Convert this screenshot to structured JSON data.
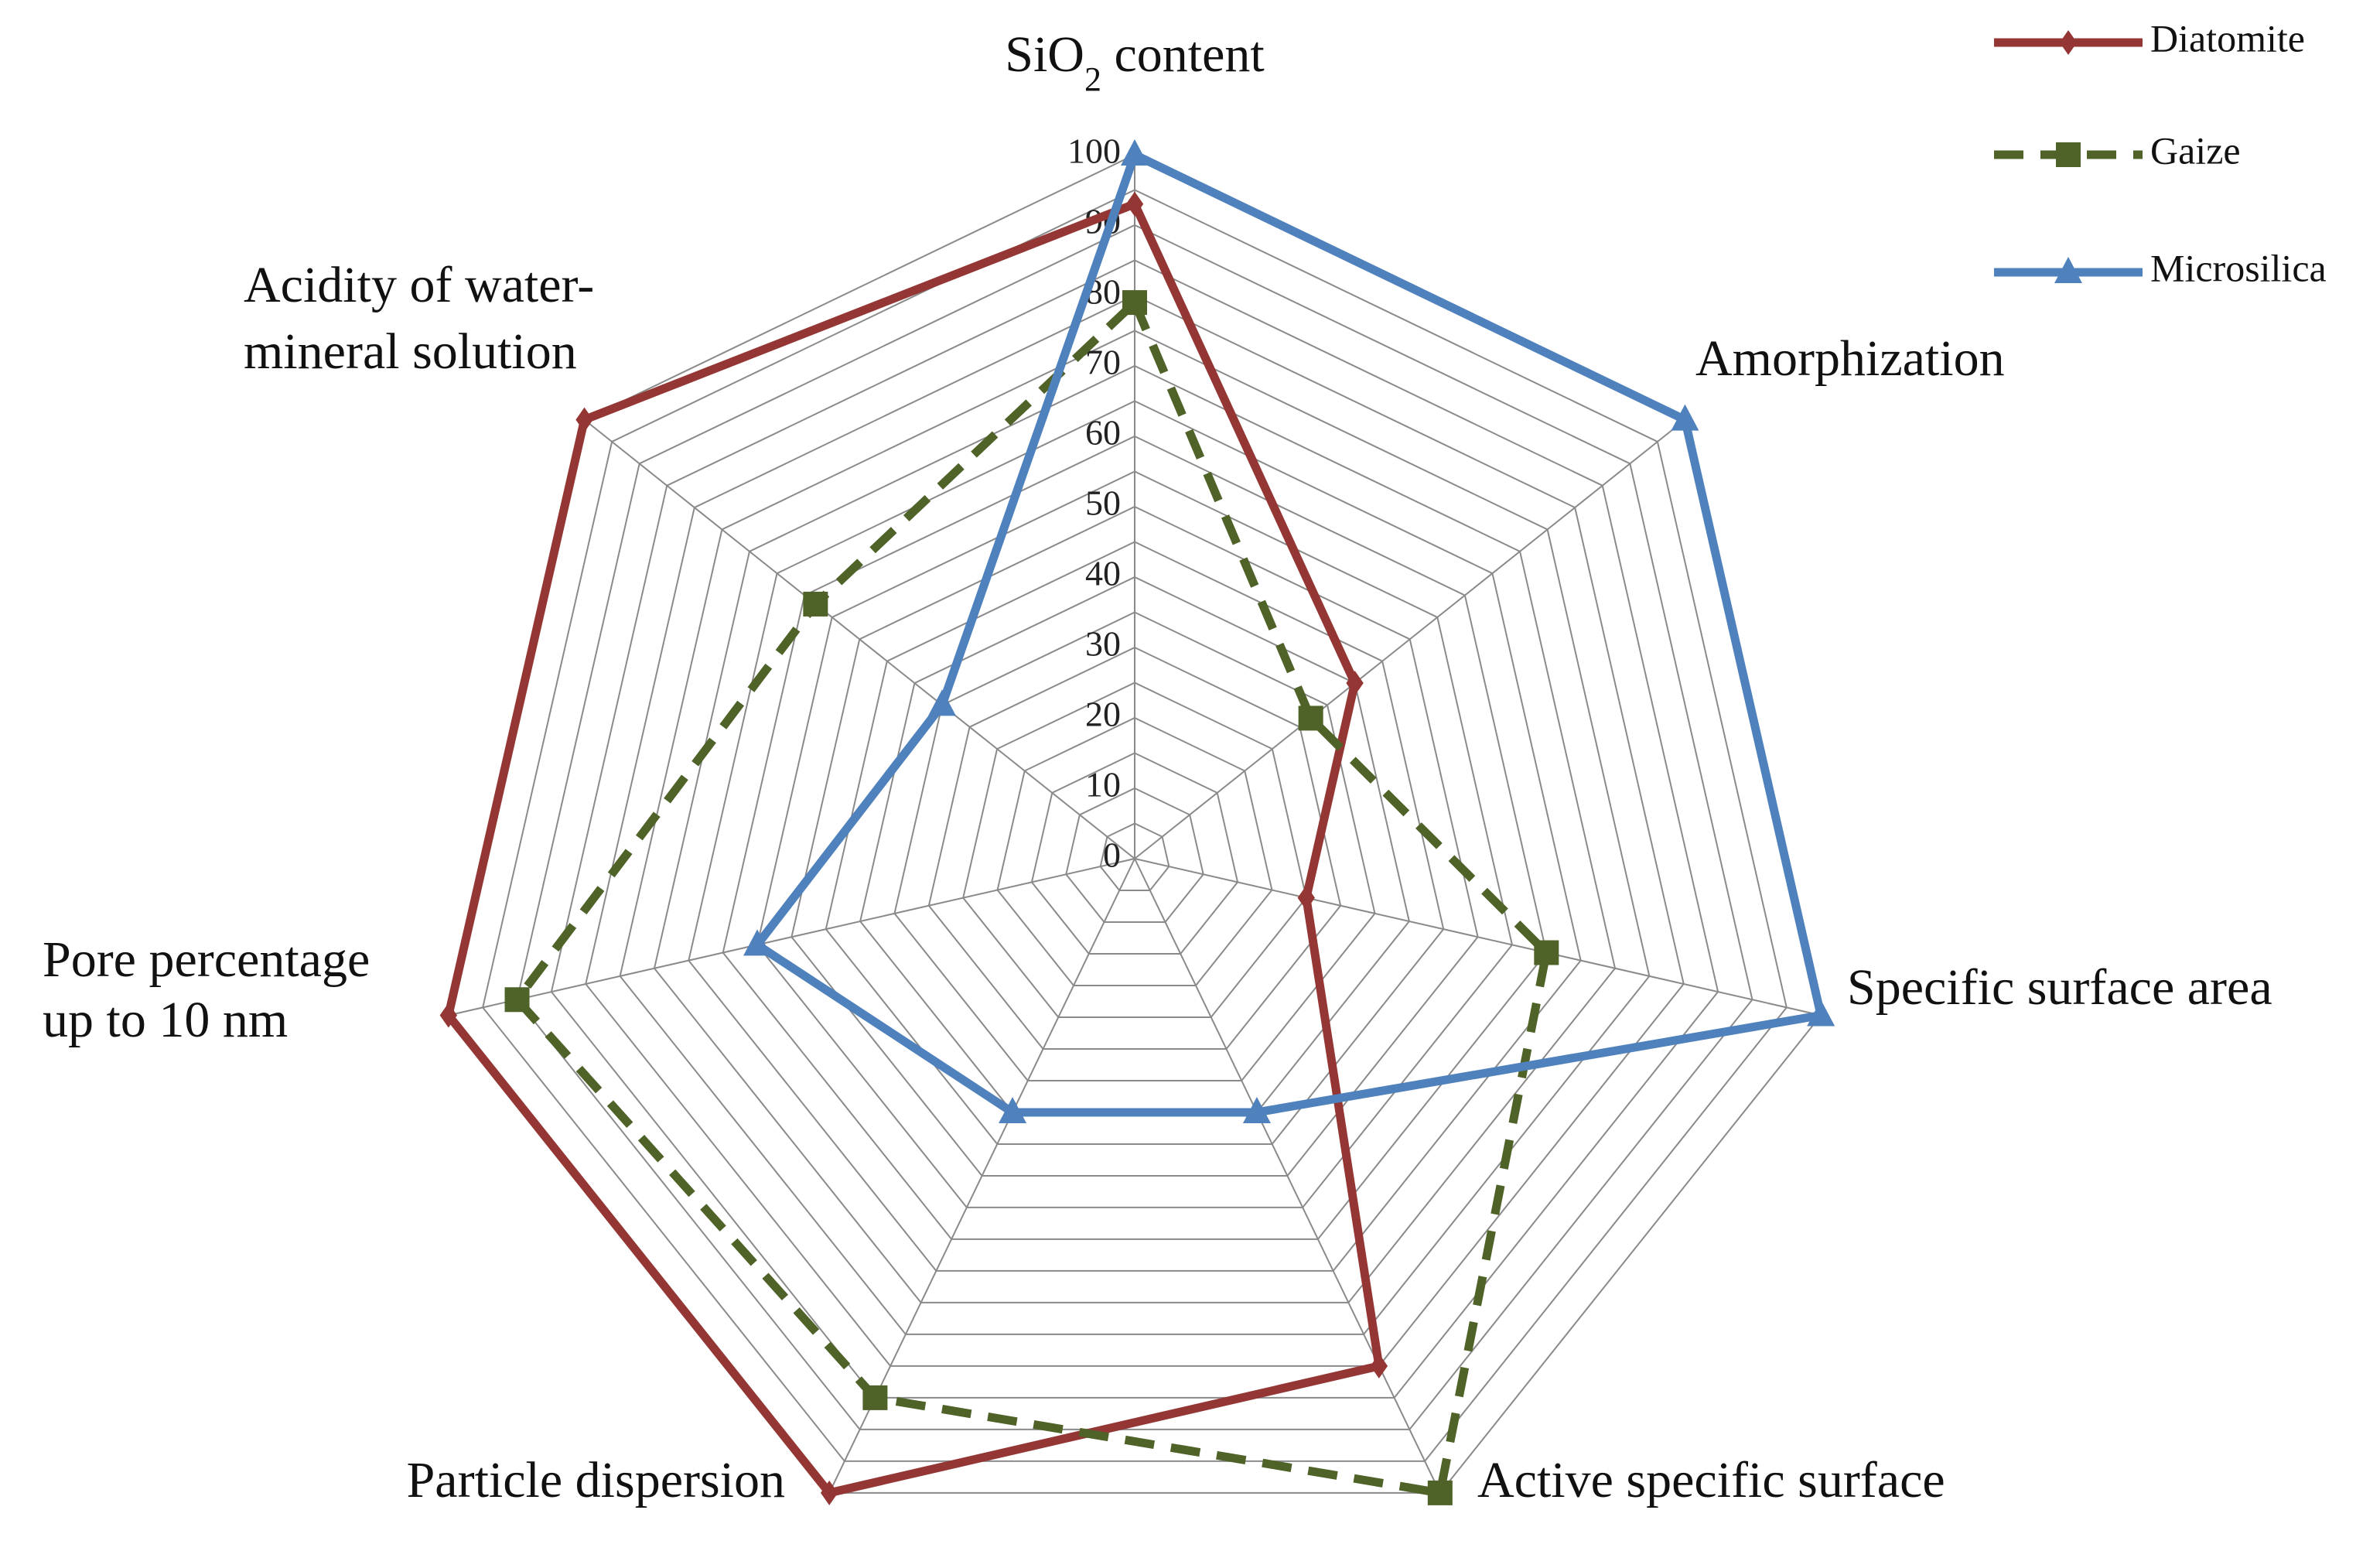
{
  "chart_data": {
    "type": "radar",
    "axes": [
      {
        "label": "SiO₂ content",
        "label_lines": [
          "SiO",
          "2",
          " content"
        ]
      },
      {
        "label": "Amorphization",
        "label_lines": [
          "Amorphization"
        ]
      },
      {
        "label": "Specific surface area",
        "label_lines": [
          "Specific surface area"
        ]
      },
      {
        "label": "Active specific surface",
        "label_lines": [
          "Active specific surface"
        ]
      },
      {
        "label": "Particle dispersion",
        "label_lines": [
          "Particle dispersion"
        ]
      },
      {
        "label": "Pore percentage up to 10 nm",
        "label_lines": [
          "Pore percentage",
          "up to 10 nm"
        ]
      },
      {
        "label": "Acidity of water-mineral solution",
        "label_lines": [
          "Acidity of water-",
          "mineral solution"
        ]
      }
    ],
    "range": [
      0,
      100
    ],
    "ticks": [
      "0",
      "10",
      "20",
      "30",
      "40",
      "50",
      "60",
      "70",
      "80",
      "90",
      "100"
    ],
    "grid": true,
    "legend_position": "top-right",
    "series": [
      {
        "name": "Diatomite",
        "color": "#943634",
        "marker": "diamond",
        "dash": "solid",
        "values": [
          93,
          40,
          25,
          80,
          100,
          100,
          100
        ]
      },
      {
        "name": "Gaize",
        "color": "#4f6228",
        "marker": "square",
        "dash": "dashed",
        "values": [
          79,
          32,
          60,
          100,
          85,
          90,
          58
        ]
      },
      {
        "name": "Microsilica",
        "color": "#4f81bd",
        "marker": "triangle",
        "dash": "solid",
        "values": [
          100,
          100,
          100,
          40,
          40,
          55,
          35
        ]
      }
    ]
  }
}
